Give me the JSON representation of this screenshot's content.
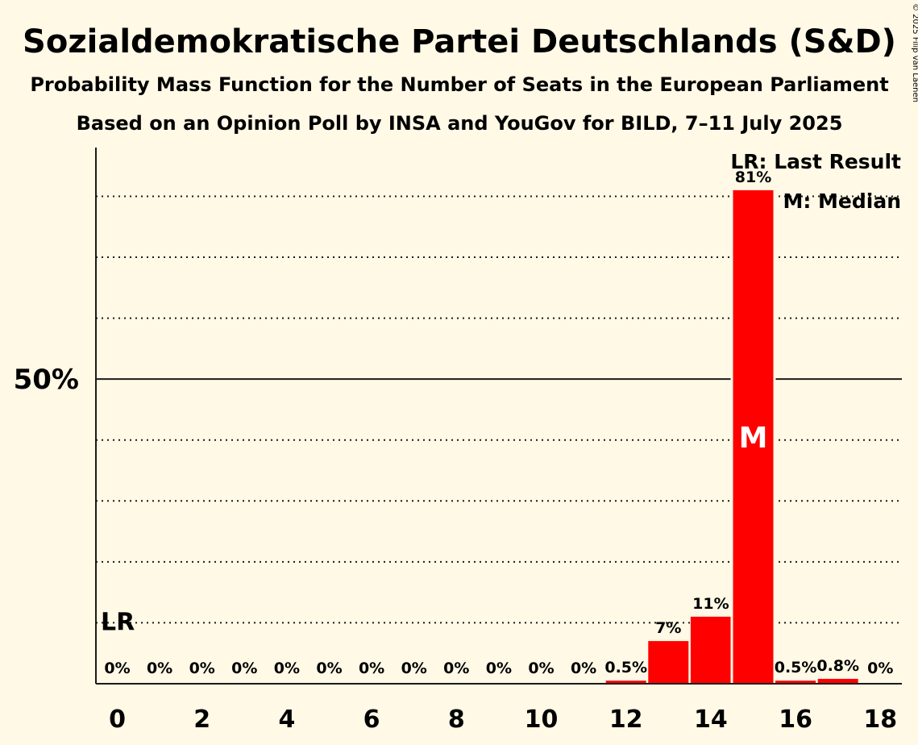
{
  "title": "Sozialdemokratische Partei Deutschlands (S&D)",
  "subtitle": "Probability Mass Function for the Number of Seats in the European Parliament",
  "source": "Based on an Opinion Poll by INSA and YouGov for BILD, 7–11 July 2025",
  "copyright": "© 2025 Filip van Laenen",
  "legend": {
    "last_result": "LR: Last Result",
    "median": "M: Median"
  },
  "colors": {
    "background": "#fff9e6",
    "bar": "#ff0000",
    "text": "#1a1a1a"
  },
  "chart_data": {
    "type": "bar",
    "x": [
      0,
      1,
      2,
      3,
      4,
      5,
      6,
      7,
      8,
      9,
      10,
      11,
      12,
      13,
      14,
      15,
      16,
      17,
      18
    ],
    "values": [
      0,
      0,
      0,
      0,
      0,
      0,
      0,
      0,
      0,
      0,
      0,
      0,
      0.5,
      7,
      11,
      81,
      0.5,
      0.8,
      0
    ],
    "labels": [
      "0%",
      "0%",
      "0%",
      "0%",
      "0%",
      "0%",
      "0%",
      "0%",
      "0%",
      "0%",
      "0%",
      "0%",
      "0.5%",
      "7%",
      "11%",
      "81%",
      "0.5%",
      "0.8%",
      "0%"
    ],
    "x_tick_labels": [
      "0",
      "2",
      "4",
      "6",
      "8",
      "10",
      "12",
      "14",
      "16",
      "18"
    ],
    "x_tick_values": [
      0,
      2,
      4,
      6,
      8,
      10,
      12,
      14,
      16,
      18
    ],
    "y_tick_label": "50%",
    "y_tick_value": 50,
    "ylim": [
      0,
      88
    ],
    "gridlines": [
      10,
      20,
      30,
      40,
      50,
      60,
      70,
      80
    ],
    "last_result": 0,
    "last_result_marker": "LR",
    "median": 15,
    "median_marker": "M",
    "legend_position": "top-right"
  }
}
